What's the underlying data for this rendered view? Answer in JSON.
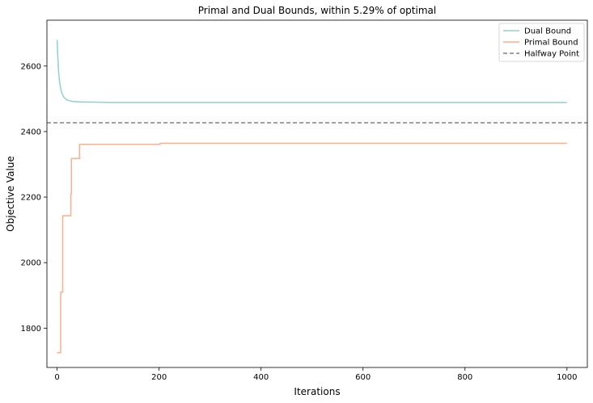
{
  "chart_data": {
    "type": "line",
    "title": "Primal and Dual Bounds, within 5.29% of optimal",
    "xlabel": "Iterations",
    "ylabel": "Objective Value",
    "xlim": [
      -20,
      1040
    ],
    "ylim": [
      1680,
      2740
    ],
    "xticks": [
      0,
      200,
      400,
      600,
      800,
      1000
    ],
    "yticks": [
      1800,
      2000,
      2200,
      2400,
      2600
    ],
    "grid": false,
    "legend_position": "top-right",
    "series": [
      {
        "name": "Dual Bound",
        "color": "#8dd3c7",
        "style": "solid",
        "x": [
          0,
          1,
          2,
          3,
          4,
          5,
          6,
          8,
          10,
          12,
          15,
          20,
          25,
          30,
          40,
          50,
          70,
          100,
          200,
          400,
          600,
          800,
          1000
        ],
        "y": [
          2680,
          2640,
          2610,
          2580,
          2565,
          2550,
          2540,
          2525,
          2515,
          2508,
          2502,
          2496,
          2494,
          2492,
          2491,
          2490,
          2490,
          2489,
          2489,
          2489,
          2489,
          2489,
          2489
        ]
      },
      {
        "name": "Primal Bound",
        "color": "#fcaf8d",
        "style": "step",
        "x": [
          0,
          6,
          7,
          10,
          11,
          25,
          27,
          28,
          42,
          44,
          200,
          202,
          1000
        ],
        "y": [
          1725,
          1725,
          1910,
          1910,
          2143,
          2143,
          2210,
          2318,
          2318,
          2361,
          2361,
          2364,
          2364
        ]
      },
      {
        "name": "Halfway Point",
        "color": "#808080",
        "style": "dashed",
        "y": 2427
      }
    ]
  }
}
